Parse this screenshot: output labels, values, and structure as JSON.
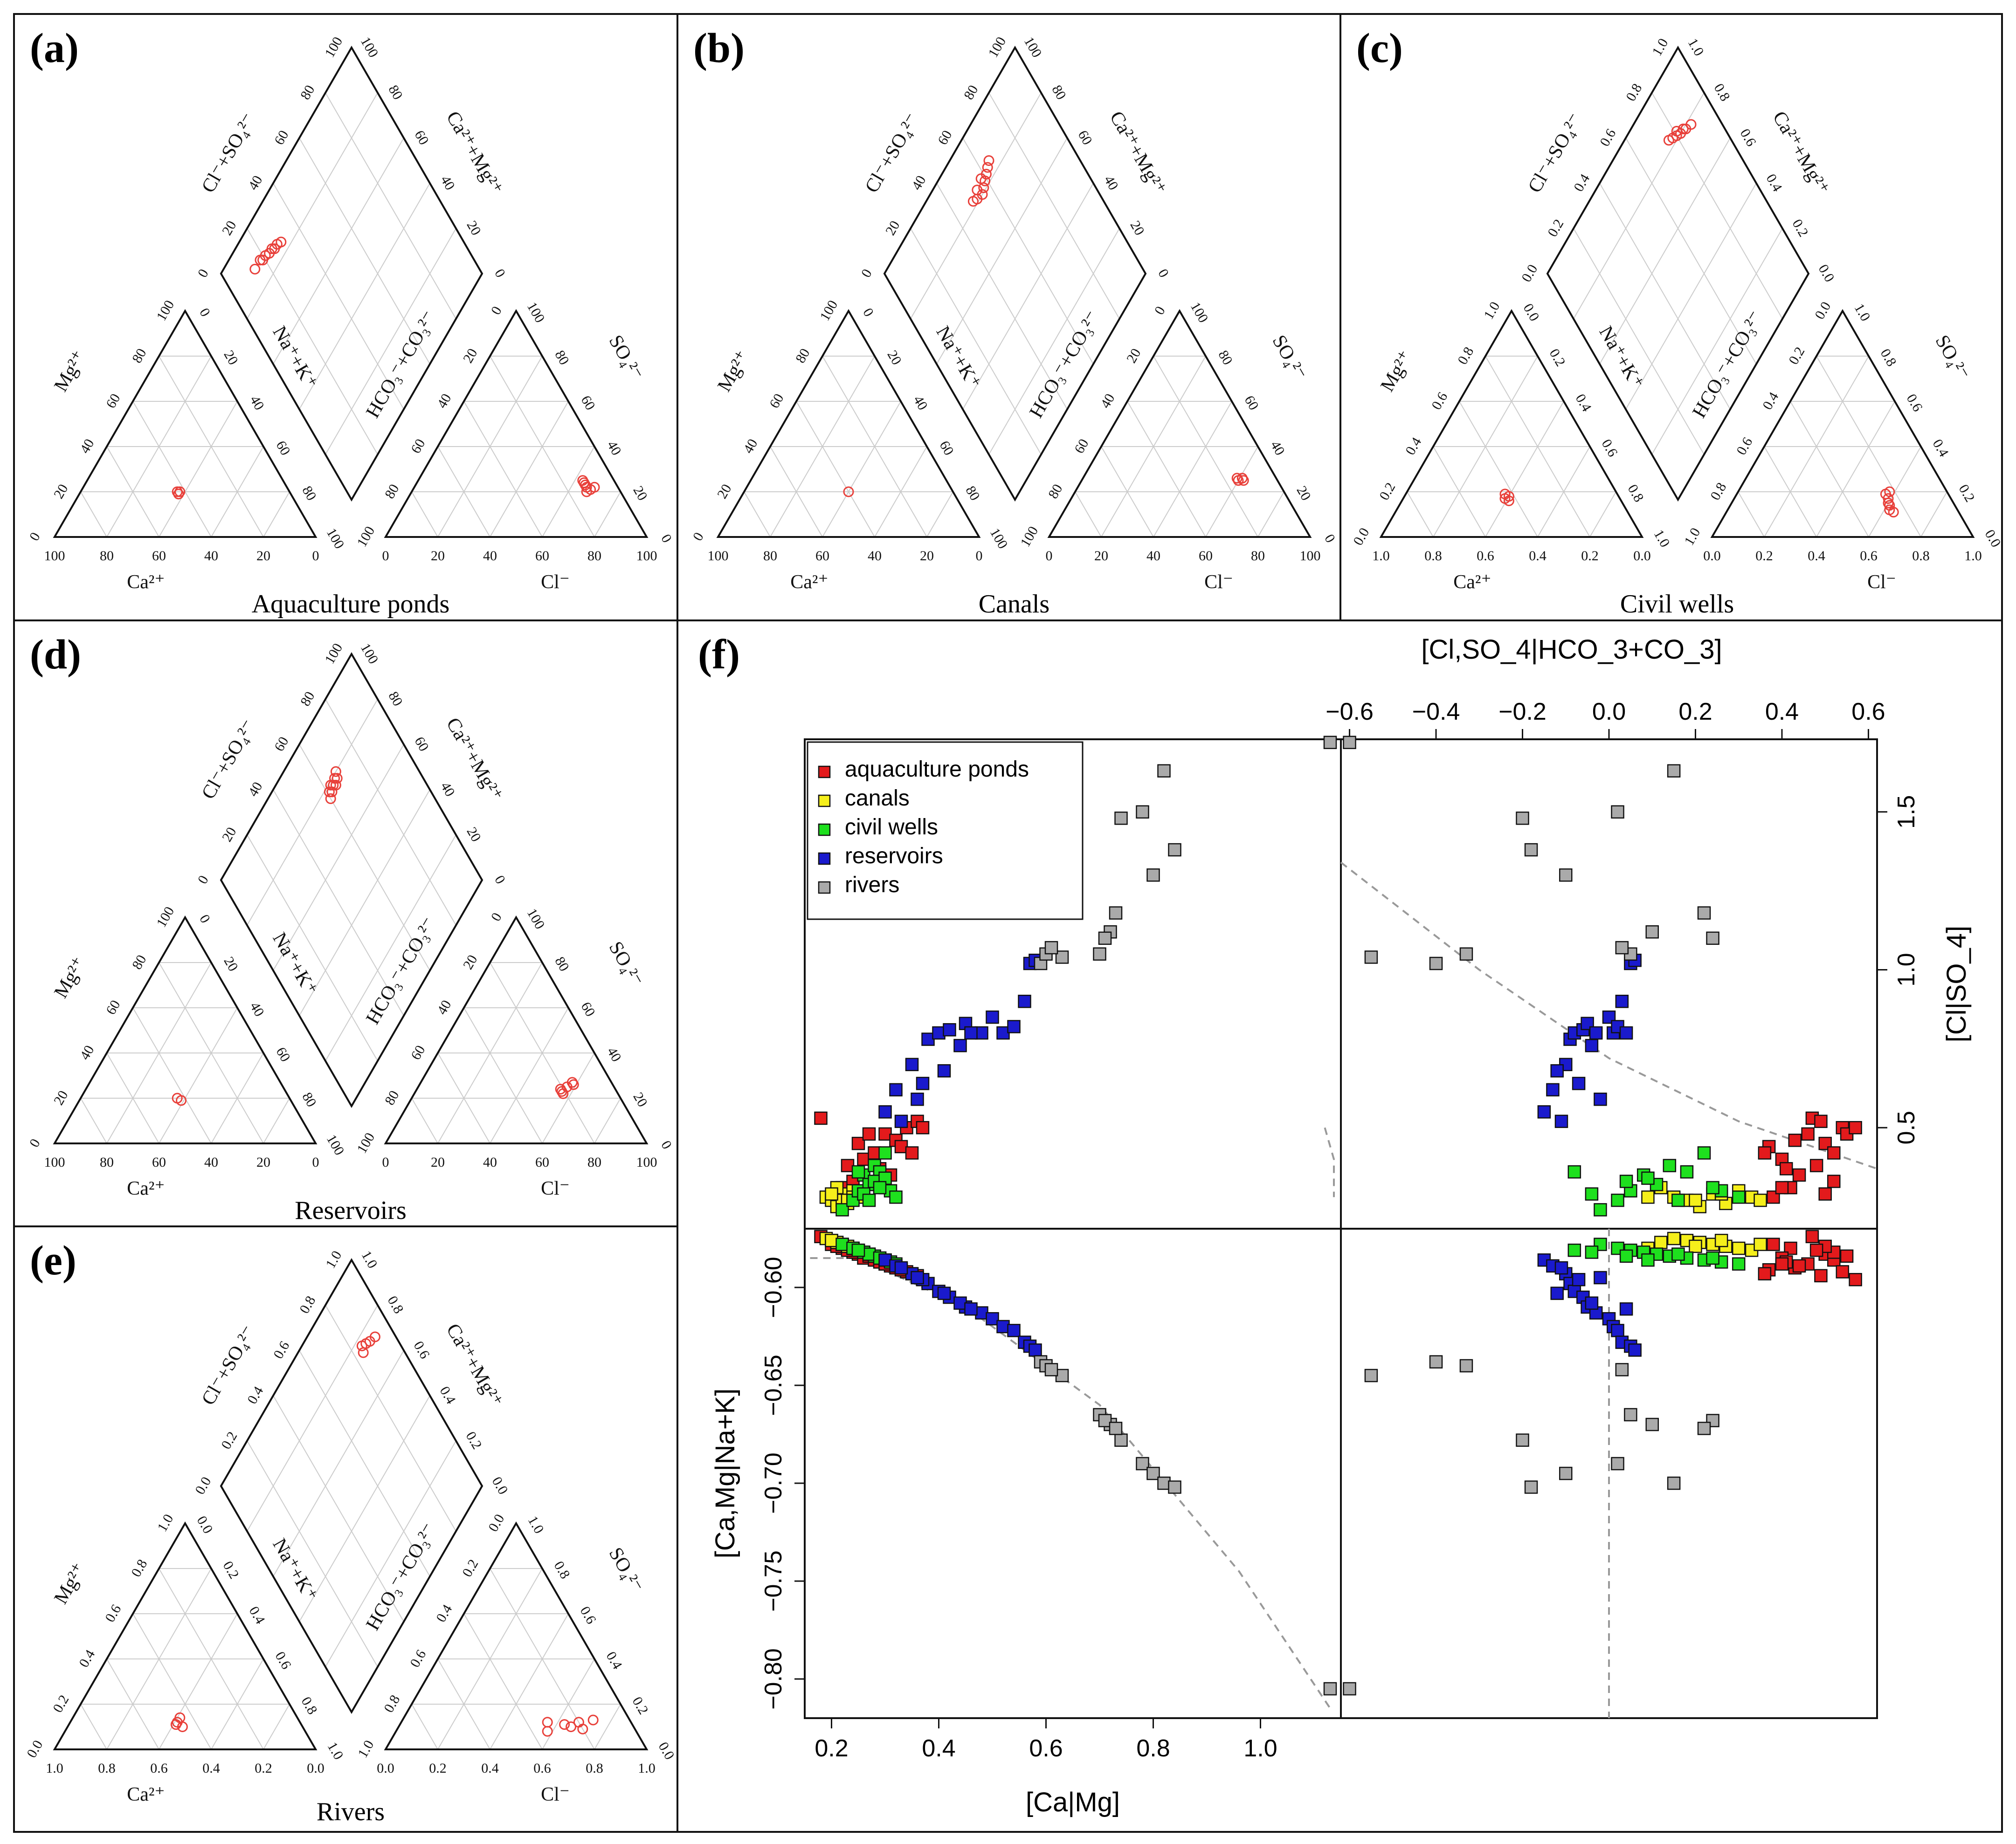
{
  "panels": [
    {
      "id": "a",
      "label": "(a)",
      "title": "Aquaculture ponds",
      "tick_style": "percent"
    },
    {
      "id": "b",
      "label": "(b)",
      "title": "Canals",
      "tick_style": "percent"
    },
    {
      "id": "c",
      "label": "(c)",
      "title": "Civil wells",
      "tick_style": "fraction"
    },
    {
      "id": "d",
      "label": "(d)",
      "title": "Reservoirs",
      "tick_style": "percent"
    },
    {
      "id": "e",
      "label": "(e)",
      "title": "Rivers",
      "tick_style": "fraction"
    },
    {
      "id": "f",
      "label": "(f)"
    }
  ],
  "piper_axis_labels": {
    "cation_bottom": "Ca²⁺",
    "cation_left": "Mg²⁺",
    "cation_right": "Na⁺+K⁺",
    "anion_bottom": "Cl⁻",
    "anion_left": "HCO₃⁻+CO₃²⁻",
    "anion_right": "SO₄²⁻",
    "diamond_left": "Cl⁻+SO₄²⁻",
    "diamond_right": "Ca²⁺+Mg²⁺"
  },
  "tick_labels": {
    "percent": [
      "0",
      "20",
      "40",
      "60",
      "80",
      "100"
    ],
    "fraction": [
      "0.0",
      "0.2",
      "0.4",
      "0.6",
      "0.8",
      "1.0"
    ]
  },
  "colors": {
    "aquaculture": "#e31a1c",
    "canals": "#f5ef1b",
    "civil": "#1ee01e",
    "reservoirs": "#1a1acd",
    "rivers": "#aaaaaa",
    "piper_marker": "#e8403a",
    "grid": "#cccccc"
  },
  "chart_data": [
    {
      "type": "scatter",
      "title": "Aquaculture ponds",
      "note": "Piper diagram; values in percent of milliequivalents",
      "cation_points": [
        {
          "ca": 43,
          "mg": 19
        },
        {
          "ca": 42,
          "mg": 20
        },
        {
          "ca": 43,
          "mg": 20
        }
      ],
      "anion_points": [
        {
          "cl": 64,
          "so4": 24
        },
        {
          "cl": 66,
          "so4": 22
        },
        {
          "cl": 68,
          "so4": 21
        },
        {
          "cl": 65,
          "so4": 23
        },
        {
          "cl": 67,
          "so4": 20
        },
        {
          "cl": 69,
          "so4": 22
        },
        {
          "cl": 63,
          "so4": 25
        }
      ],
      "diamond_points": [
        {
          "x": 88,
          "y": 18
        },
        {
          "x": 87,
          "y": 21
        },
        {
          "x": 86,
          "y": 25
        },
        {
          "x": 85,
          "y": 28
        },
        {
          "x": 84,
          "y": 30
        },
        {
          "x": 86,
          "y": 23
        },
        {
          "x": 87,
          "y": 19
        },
        {
          "x": 85,
          "y": 26
        },
        {
          "x": 88,
          "y": 14
        }
      ]
    },
    {
      "type": "scatter",
      "title": "Canals",
      "note": "Piper diagram; values in percent of milliequivalents",
      "cation_points": [
        {
          "ca": 40,
          "mg": 20
        }
      ],
      "anion_points": [
        {
          "cl": 60,
          "so4": 25
        },
        {
          "cl": 61,
          "so4": 26
        },
        {
          "cl": 62,
          "so4": 25
        },
        {
          "cl": 59,
          "so4": 26
        }
      ],
      "diamond_points": [
        {
          "x": 82,
          "y": 50
        },
        {
          "x": 81,
          "y": 52
        },
        {
          "x": 80,
          "y": 55
        },
        {
          "x": 81,
          "y": 57
        },
        {
          "x": 82,
          "y": 59
        },
        {
          "x": 83,
          "y": 61
        },
        {
          "x": 84,
          "y": 63
        },
        {
          "x": 85,
          "y": 65
        },
        {
          "x": 83,
          "y": 54
        },
        {
          "x": 84,
          "y": 58
        }
      ]
    },
    {
      "type": "scatter",
      "title": "Civil wells",
      "note": "Piper diagram; values in fraction of milliequivalents",
      "cation_points": [
        {
          "ca": 0.43,
          "mg": 0.16
        },
        {
          "ca": 0.44,
          "mg": 0.17
        },
        {
          "ca": 0.42,
          "mg": 0.18
        },
        {
          "ca": 0.43,
          "mg": 0.19
        }
      ],
      "anion_points": [
        {
          "cl": 0.58,
          "so4": 0.2
        },
        {
          "cl": 0.6,
          "so4": 0.15
        },
        {
          "cl": 0.62,
          "so4": 0.12
        },
        {
          "cl": 0.61,
          "so4": 0.14
        },
        {
          "cl": 0.59,
          "so4": 0.17
        },
        {
          "cl": 0.64,
          "so4": 0.11
        },
        {
          "cl": 0.57,
          "so4": 0.19
        }
      ],
      "diamond_points": [
        {
          "x": 0.78,
          "y": 0.88
        },
        {
          "x": 0.79,
          "y": 0.85
        },
        {
          "x": 0.8,
          "y": 0.82
        },
        {
          "x": 0.81,
          "y": 0.8
        },
        {
          "x": 0.82,
          "y": 0.78
        },
        {
          "x": 0.83,
          "y": 0.76
        },
        {
          "x": 0.8,
          "y": 0.84
        },
        {
          "x": 0.82,
          "y": 0.81
        }
      ]
    },
    {
      "type": "scatter",
      "title": "Reservoirs",
      "note": "Piper diagram; values in percent of milliequivalents",
      "cation_points": [
        {
          "ca": 42,
          "mg": 19
        },
        {
          "ca": 43,
          "mg": 20
        }
      ],
      "anion_points": [
        {
          "cl": 56,
          "so4": 23
        },
        {
          "cl": 57,
          "so4": 25
        },
        {
          "cl": 58,
          "so4": 27
        },
        {
          "cl": 55,
          "so4": 24
        },
        {
          "cl": 59,
          "so4": 26
        },
        {
          "cl": 57,
          "so4": 22
        }
      ],
      "diamond_points": [
        {
          "x": 76,
          "y": 60
        },
        {
          "x": 77,
          "y": 62
        },
        {
          "x": 78,
          "y": 64
        },
        {
          "x": 79,
          "y": 66
        },
        {
          "x": 78,
          "y": 67
        },
        {
          "x": 77,
          "y": 65
        },
        {
          "x": 79,
          "y": 63
        },
        {
          "x": 80,
          "y": 68
        },
        {
          "x": 78,
          "y": 61
        }
      ]
    },
    {
      "type": "scatter",
      "title": "Rivers",
      "note": "Piper diagram; values in fraction of milliequivalents",
      "cation_points": [
        {
          "ca": 0.46,
          "mg": 0.1
        },
        {
          "ca": 0.47,
          "mg": 0.12
        },
        {
          "ca": 0.45,
          "mg": 0.14
        },
        {
          "ca": 0.48,
          "mg": 0.11
        }
      ],
      "anion_points": [
        {
          "cl": 0.58,
          "so4": 0.08
        },
        {
          "cl": 0.66,
          "so4": 0.1
        },
        {
          "cl": 0.68,
          "so4": 0.12
        },
        {
          "cl": 0.71,
          "so4": 0.09
        },
        {
          "cl": 0.63,
          "so4": 0.11
        },
        {
          "cl": 0.73,
          "so4": 0.13
        },
        {
          "cl": 0.56,
          "so4": 0.12
        }
      ],
      "diamond_points": [
        {
          "x": 0.74,
          "y": 0.92
        },
        {
          "x": 0.75,
          "y": 0.89
        },
        {
          "x": 0.76,
          "y": 0.87
        },
        {
          "x": 0.77,
          "y": 0.85
        },
        {
          "x": 0.75,
          "y": 0.84
        }
      ]
    },
    {
      "type": "scatter",
      "title": "",
      "note": "Scatterplot matrix of isometric log-ratio coordinates",
      "variables": [
        "[Ca|Mg]",
        "[Ca,Mg|Na+K]",
        "[Cl|SO_4]",
        "[Cl,SO_4|HCO_3+CO_3]"
      ],
      "legend": {
        "position": "top-left",
        "entries": [
          "aquaculture ponds",
          "canals",
          "civil wells",
          "reservoirs",
          "rivers"
        ]
      },
      "axes": {
        "x_bottom": {
          "label": "[Ca|Mg]",
          "range": [
            0.15,
            1.15
          ],
          "ticks": [
            "0.2",
            "0.4",
            "0.6",
            "0.8",
            "1.0"
          ]
        },
        "y_left": {
          "label": "[Ca,Mg|Na+K]",
          "range": [
            -0.82,
            -0.57
          ],
          "ticks": [
            "-0.60",
            "-0.65",
            "-0.70",
            "-0.75",
            "-0.80"
          ]
        },
        "x_top": {
          "label": "[Cl,SO_4|HCO_3+CO_3]",
          "range": [
            -0.62,
            0.62
          ],
          "ticks": [
            "-0.6",
            "-0.4",
            "-0.2",
            "0.0",
            "0.2",
            "0.4",
            "0.6"
          ]
        },
        "y_right": {
          "label": "[Cl|SO_4]",
          "range": [
            0.18,
            1.73
          ],
          "ticks": [
            "0.5",
            "1.0",
            "1.5"
          ]
        }
      },
      "series": [
        {
          "name": "aquaculture ponds",
          "points": [
            [
              0.18,
              -0.574,
              0.53,
              0.47
            ],
            [
              0.2,
              -0.578,
              0.28,
              0.38
            ],
            [
              0.22,
              -0.58,
              0.31,
              0.42
            ],
            [
              0.25,
              -0.583,
              0.45,
              0.5
            ],
            [
              0.26,
              -0.585,
              0.4,
              0.4
            ],
            [
              0.28,
              -0.586,
              0.42,
              0.52
            ],
            [
              0.3,
              -0.588,
              0.48,
              0.46
            ],
            [
              0.32,
              -0.59,
              0.46,
              0.43
            ],
            [
              0.34,
              -0.592,
              0.5,
              0.54
            ],
            [
              0.36,
              -0.594,
              0.52,
              0.49
            ],
            [
              0.33,
              -0.591,
              0.44,
              0.37
            ],
            [
              0.35,
              -0.593,
              0.42,
              0.36
            ],
            [
              0.29,
              -0.587,
              0.37,
              0.41
            ],
            [
              0.24,
              -0.582,
              0.33,
              0.52
            ],
            [
              0.27,
              -0.584,
              0.48,
              0.55
            ],
            [
              0.31,
              -0.589,
              0.35,
              0.44
            ],
            [
              0.21,
              -0.579,
              0.29,
              0.5
            ],
            [
              0.23,
              -0.581,
              0.38,
              0.48
            ],
            [
              0.37,
              -0.596,
              0.5,
              0.57
            ],
            [
              0.3,
              -0.588,
              0.31,
              0.4
            ]
          ]
        },
        {
          "name": "canals",
          "points": [
            [
              0.19,
              -0.575,
              0.28,
              0.15
            ],
            [
              0.2,
              -0.576,
              0.27,
              0.18
            ],
            [
              0.21,
              -0.577,
              0.25,
              0.21
            ],
            [
              0.22,
              -0.578,
              0.29,
              0.24
            ],
            [
              0.23,
              -0.579,
              0.26,
              0.27
            ],
            [
              0.24,
              -0.58,
              0.3,
              0.3
            ],
            [
              0.25,
              -0.581,
              0.28,
              0.33
            ],
            [
              0.22,
              -0.578,
              0.27,
              0.35
            ],
            [
              0.21,
              -0.577,
              0.31,
              0.12
            ],
            [
              0.2,
              -0.576,
              0.29,
              0.26
            ],
            [
              0.23,
              -0.579,
              0.27,
              0.2
            ],
            [
              0.24,
              -0.58,
              0.28,
              0.09
            ]
          ]
        },
        {
          "name": "civil wells",
          "points": [
            [
              0.22,
              -0.578,
              0.24,
              -0.02
            ],
            [
              0.24,
              -0.58,
              0.27,
              0.02
            ],
            [
              0.25,
              -0.581,
              0.3,
              0.05
            ],
            [
              0.26,
              -0.582,
              0.35,
              0.08
            ],
            [
              0.27,
              -0.583,
              0.32,
              0.11
            ],
            [
              0.28,
              -0.584,
              0.38,
              0.14
            ],
            [
              0.29,
              -0.585,
              0.36,
              0.18
            ],
            [
              0.3,
              -0.586,
              0.42,
              0.22
            ],
            [
              0.31,
              -0.587,
              0.3,
              0.26
            ],
            [
              0.32,
              -0.588,
              0.28,
              0.3
            ],
            [
              0.28,
              -0.584,
              0.33,
              0.04
            ],
            [
              0.26,
              -0.582,
              0.29,
              -0.04
            ],
            [
              0.3,
              -0.586,
              0.34,
              0.09
            ],
            [
              0.27,
              -0.583,
              0.27,
              0.16
            ],
            [
              0.29,
              -0.585,
              0.31,
              0.24
            ],
            [
              0.25,
              -0.581,
              0.36,
              -0.08
            ]
          ]
        },
        {
          "name": "reservoirs",
          "points": [
            [
              0.3,
              -0.586,
              0.55,
              -0.15
            ],
            [
              0.32,
              -0.589,
              0.62,
              -0.13
            ],
            [
              0.35,
              -0.593,
              0.7,
              -0.1
            ],
            [
              0.38,
              -0.598,
              0.78,
              -0.09
            ],
            [
              0.4,
              -0.602,
              0.8,
              -0.08
            ],
            [
              0.42,
              -0.605,
              0.81,
              -0.06
            ],
            [
              0.45,
              -0.61,
              0.83,
              -0.05
            ],
            [
              0.48,
              -0.613,
              0.8,
              -0.03
            ],
            [
              0.5,
              -0.616,
              0.85,
              0.0
            ],
            [
              0.52,
              -0.62,
              0.8,
              0.01
            ],
            [
              0.54,
              -0.622,
              0.82,
              0.02
            ],
            [
              0.56,
              -0.628,
              0.9,
              0.03
            ],
            [
              0.57,
              -0.63,
              1.02,
              0.05
            ],
            [
              0.58,
              -0.632,
              1.03,
              0.06
            ],
            [
              0.37,
              -0.596,
              0.64,
              -0.07
            ],
            [
              0.33,
              -0.59,
              0.52,
              -0.11
            ],
            [
              0.44,
              -0.608,
              0.76,
              -0.04
            ],
            [
              0.41,
              -0.603,
              0.68,
              -0.12
            ],
            [
              0.36,
              -0.595,
              0.59,
              -0.02
            ],
            [
              0.46,
              -0.611,
              0.8,
              0.04
            ]
          ]
        },
        {
          "name": "rivers",
          "points": [
            [
              0.59,
              -0.638,
              1.02,
              -0.4
            ],
            [
              0.6,
              -0.64,
              1.05,
              -0.33
            ],
            [
              0.63,
              -0.645,
              1.04,
              -0.55
            ],
            [
              0.7,
              -0.665,
              1.05,
              0.05
            ],
            [
              0.72,
              -0.67,
              1.12,
              0.1
            ],
            [
              0.74,
              -0.678,
              1.48,
              -0.2
            ],
            [
              0.78,
              -0.69,
              1.5,
              0.02
            ],
            [
              0.8,
              -0.695,
              1.3,
              -0.1
            ],
            [
              0.82,
              -0.7,
              1.63,
              0.15
            ],
            [
              0.84,
              -0.702,
              1.38,
              -0.18
            ],
            [
              0.71,
              -0.668,
              1.1,
              0.24
            ],
            [
              0.73,
              -0.672,
              1.18,
              0.22
            ],
            [
              0.61,
              -0.642,
              1.07,
              0.03
            ],
            [
              1.13,
              -0.805,
              1.72,
              -0.6
            ]
          ]
        }
      ]
    }
  ]
}
